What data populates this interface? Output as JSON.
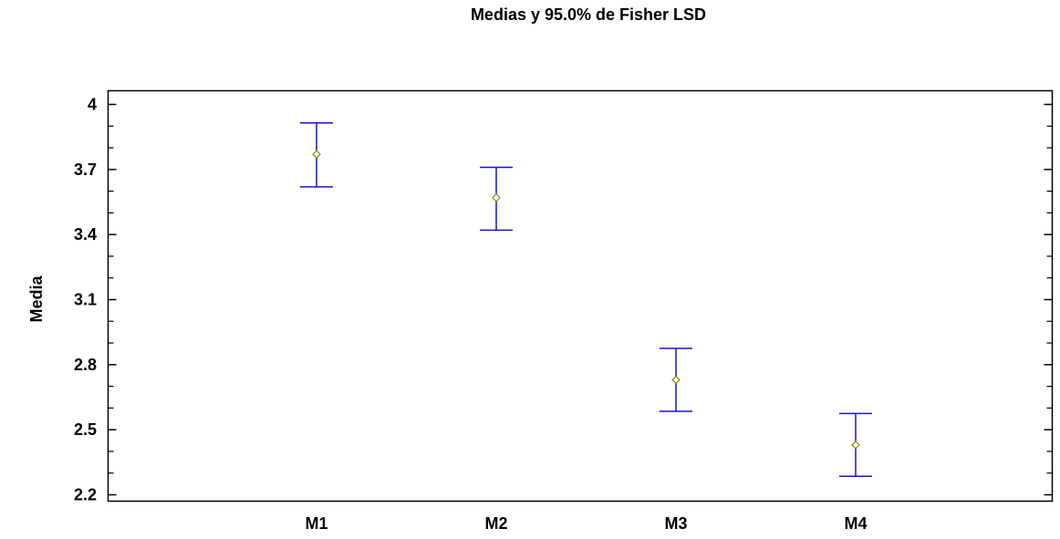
{
  "chart_data": {
    "type": "scatter",
    "title": "Medias y 95.0% de Fisher LSD",
    "xlabel": "",
    "ylabel": "Media",
    "categories": [
      "M1",
      "M2",
      "M3",
      "M4"
    ],
    "means": [
      3.77,
      3.57,
      2.73,
      2.43
    ],
    "lower": [
      3.62,
      3.42,
      2.585,
      2.285
    ],
    "upper": [
      3.915,
      3.71,
      2.875,
      2.575
    ],
    "ylim": [
      2.15,
      4.05
    ],
    "yticks": [
      "4",
      "3.7",
      "3.4",
      "3.1",
      "2.8",
      "2.5",
      "2.2"
    ],
    "grid": false,
    "colors": {
      "error_bar": "#1414c8",
      "mean_marker": "#8a8a00",
      "axis": "#000000"
    }
  }
}
